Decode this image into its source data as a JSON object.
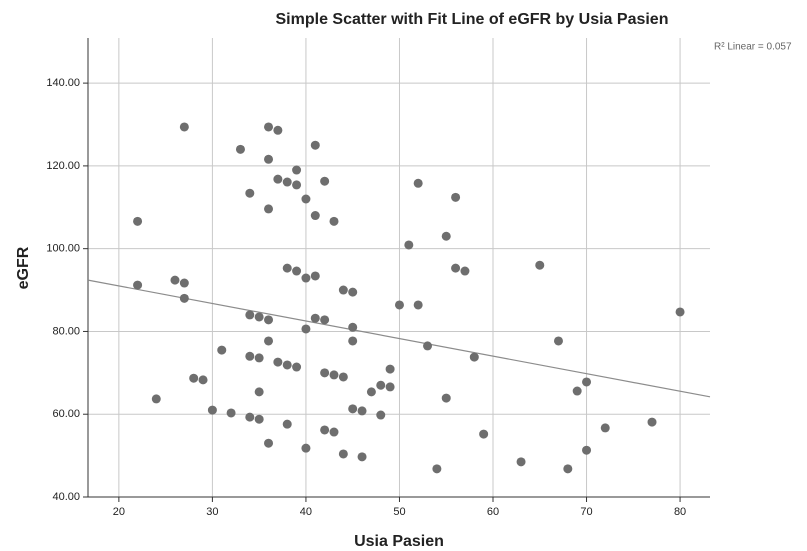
{
  "chart_data": {
    "type": "scatter",
    "title": "Simple Scatter with Fit Line of eGFR by Usia Pasien",
    "x_label": "Usia Pasien",
    "y_label": "eGFR",
    "annotation": "R² Linear = 0.057",
    "color": "#6e6e6e",
    "grid": true,
    "xlim": [
      16.7,
      83.2
    ],
    "ylim": [
      40,
      150.9
    ],
    "xticks": [
      20,
      30,
      40,
      50,
      60,
      70,
      80
    ],
    "yticks": [
      {
        "value": 40,
        "label": "40.00"
      },
      {
        "value": 60,
        "label": "60.00"
      },
      {
        "value": 80,
        "label": "80.00"
      },
      {
        "value": 100,
        "label": "100.00"
      },
      {
        "value": 120,
        "label": "120.00"
      },
      {
        "value": 140,
        "label": "140.00"
      }
    ],
    "x": [
      27,
      33,
      36,
      37,
      36,
      41,
      34,
      37,
      38,
      39,
      39,
      42,
      40,
      36,
      41,
      43,
      22,
      52,
      56,
      55,
      51,
      65,
      56,
      57,
      38,
      39,
      40,
      41,
      26,
      27,
      22,
      44,
      45,
      27,
      50,
      52,
      80,
      34,
      35,
      36,
      41,
      42,
      40,
      45,
      45,
      36,
      67,
      53,
      31,
      34,
      35,
      58,
      37,
      38,
      39,
      49,
      42,
      43,
      44,
      28,
      29,
      70,
      48,
      49,
      47,
      35,
      69,
      24,
      55,
      30,
      32,
      45,
      46,
      48,
      34,
      35,
      77,
      38,
      72,
      42,
      43,
      59,
      36,
      40,
      70,
      44,
      46,
      63,
      54,
      68
    ],
    "values": [
      129.4,
      124,
      129.4,
      128.6,
      121.6,
      125,
      113.4,
      116.8,
      116.1,
      115.4,
      119,
      116.3,
      112,
      109.6,
      108,
      106.6,
      106.6,
      115.8,
      112.4,
      103,
      100.9,
      96,
      95.3,
      94.6,
      95.3,
      94.6,
      92.9,
      93.4,
      92.4,
      91.7,
      91.2,
      90,
      89.5,
      88,
      86.4,
      86.4,
      84.7,
      84,
      83.5,
      82.8,
      83.2,
      82.8,
      80.6,
      81,
      77.7,
      77.7,
      77.7,
      76.5,
      75.5,
      74,
      73.6,
      73.8,
      72.6,
      71.9,
      71.4,
      70.9,
      70,
      69.5,
      69,
      68.7,
      68.3,
      67.8,
      67,
      66.6,
      65.4,
      65.4,
      65.6,
      63.7,
      63.9,
      61,
      60.3,
      61.3,
      60.8,
      59.8,
      59.3,
      58.8,
      58.1,
      57.6,
      56.7,
      56.2,
      55.7,
      55.2,
      53,
      51.8,
      51.3,
      50.4,
      49.7,
      48.5,
      46.8,
      46.8
    ],
    "fit_line": {
      "color": "#8c8c8c",
      "x": [
        16.7,
        83.2
      ],
      "y": [
        92.4,
        64.2
      ]
    }
  }
}
